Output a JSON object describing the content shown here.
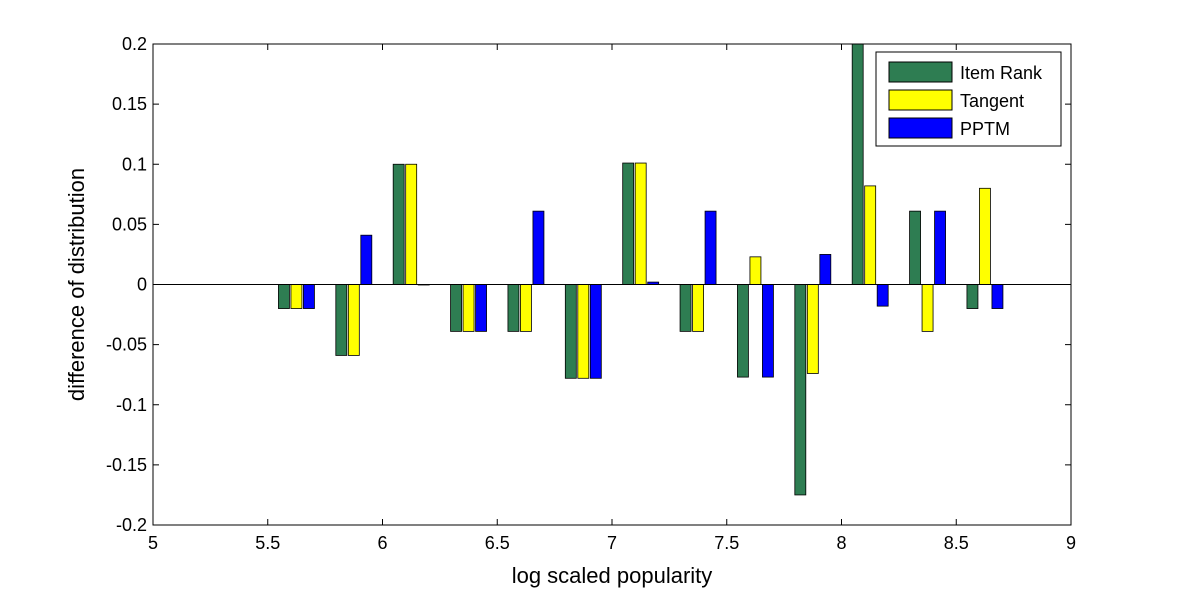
{
  "chart_data": {
    "type": "bar",
    "title": "",
    "xlabel": "log scaled popularity",
    "ylabel": "difference of distribution",
    "xlim": [
      5,
      9
    ],
    "ylim": [
      -0.2,
      0.2
    ],
    "x_ticks": [
      "5",
      "5.5",
      "6",
      "6.5",
      "7",
      "7.5",
      "8",
      "8.5",
      "9"
    ],
    "y_ticks": [
      "-0.2",
      "-0.15",
      "-0.1",
      "-0.05",
      "0",
      "0.05",
      "0.1",
      "0.15",
      "0.2"
    ],
    "grid": false,
    "legend_position": "top-right",
    "x": [
      5.625,
      5.875,
      6.125,
      6.375,
      6.625,
      6.875,
      7.125,
      7.375,
      7.625,
      7.875,
      8.125,
      8.375,
      8.625
    ],
    "series": [
      {
        "name": "Item Rank",
        "color": "#2e7d52",
        "values": [
          -0.02,
          -0.059,
          0.1,
          -0.039,
          -0.039,
          -0.078,
          0.101,
          -0.039,
          -0.077,
          -0.175,
          0.2,
          0.061,
          -0.02
        ]
      },
      {
        "name": "Tangent",
        "color": "#ffff00",
        "values": [
          -0.02,
          -0.059,
          0.1,
          -0.039,
          -0.039,
          -0.078,
          0.101,
          -0.039,
          0.023,
          -0.074,
          0.082,
          -0.039,
          0.08
        ]
      },
      {
        "name": "PPTM",
        "color": "#0000ff",
        "values": [
          -0.02,
          0.041,
          0,
          -0.039,
          0.061,
          -0.078,
          0.002,
          0.061,
          -0.077,
          0.025,
          -0.018,
          0.061,
          -0.02
        ]
      }
    ]
  }
}
